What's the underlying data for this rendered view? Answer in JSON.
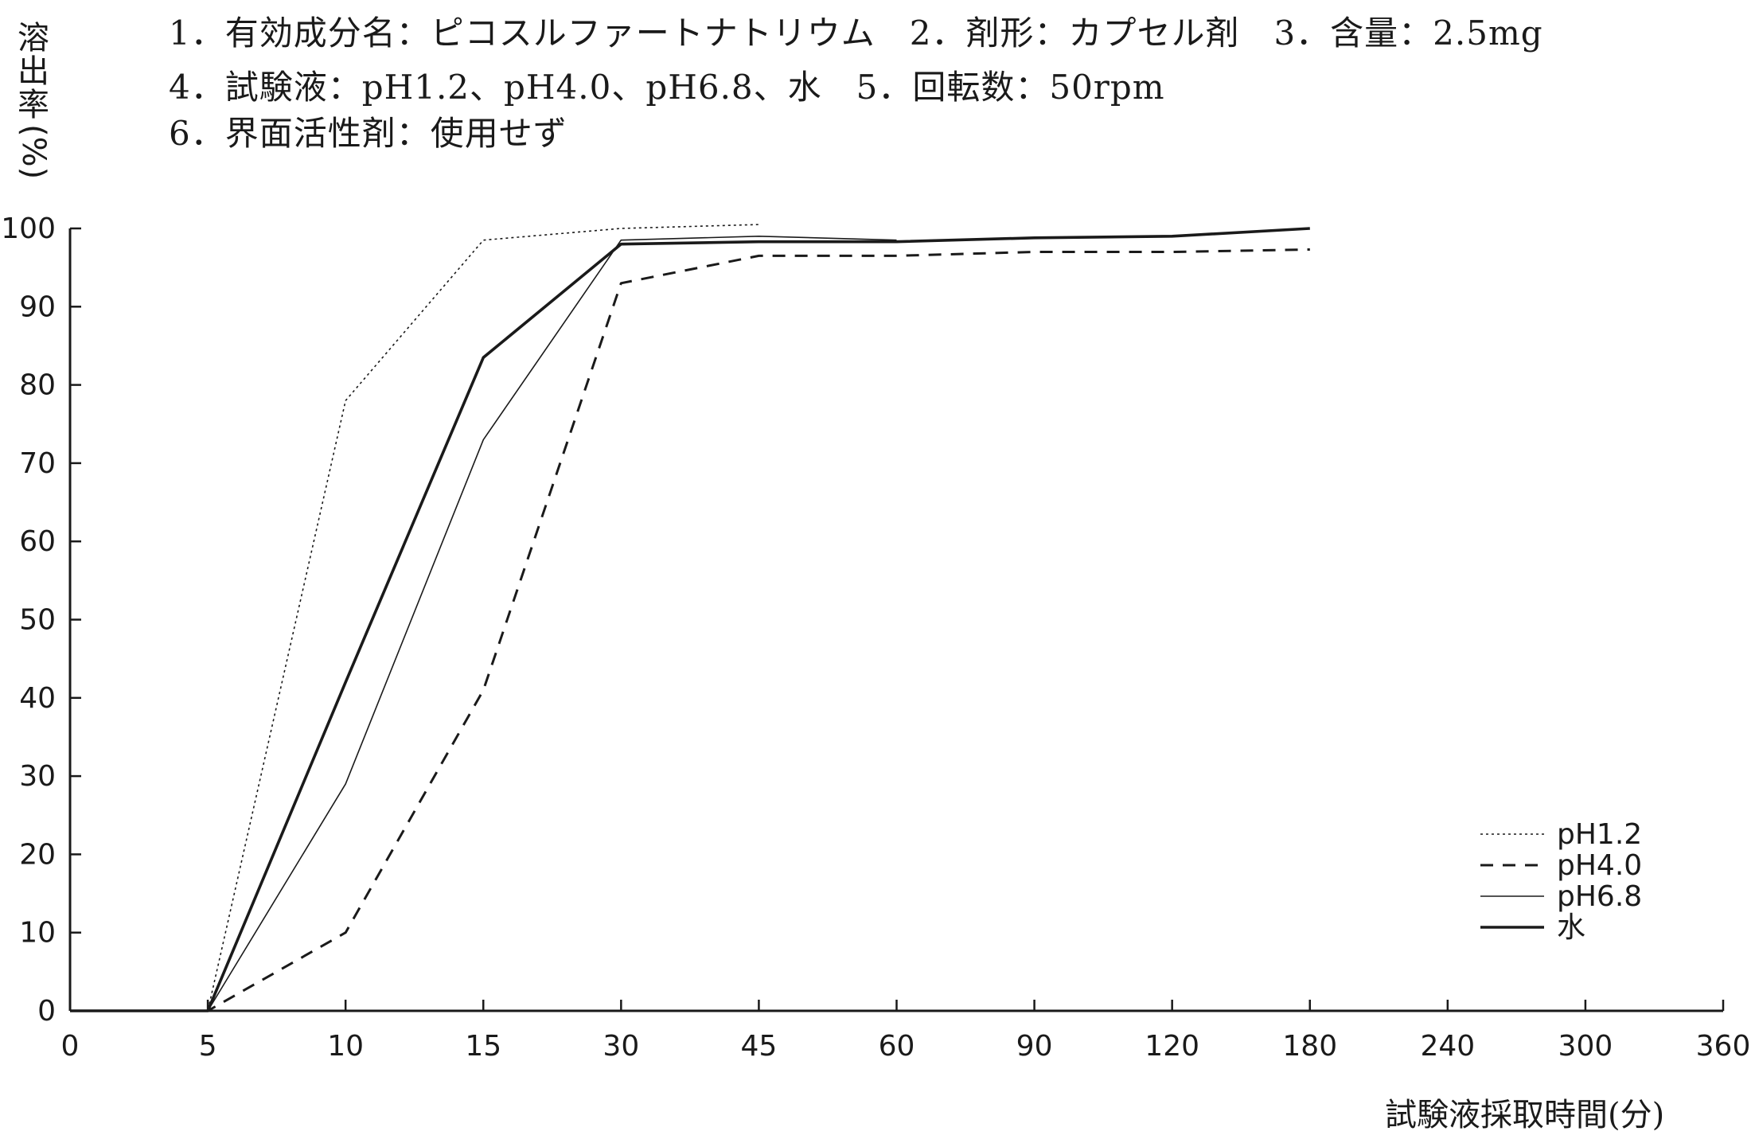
{
  "header": {
    "line1": "1．有効成分名：ピコスルファートナトリウム　2．剤形：カプセル剤　3．含量：2.5mg",
    "line2": "4．試験液：pH1.2、pH4.0、pH6.8、水　5．回転数：50rpm",
    "line3": "6．界面活性剤：使用せず"
  },
  "chart_data": {
    "type": "line",
    "title": "",
    "xlabel": "試験液採取時間(分)",
    "ylabel": "溶出率(%)",
    "ylabel_chars": [
      "溶",
      "出",
      "率",
      "(%)"
    ],
    "categories": [
      "0",
      "5",
      "10",
      "15",
      "30",
      "45",
      "60",
      "90",
      "120",
      "180",
      "240",
      "300",
      "360"
    ],
    "yticks": [
      "0",
      "10",
      "20",
      "30",
      "40",
      "50",
      "60",
      "70",
      "80",
      "90",
      "100"
    ],
    "ylim": [
      0,
      100
    ],
    "grid": false,
    "legend_position": "lower-right",
    "series": [
      {
        "name": "pH1.2",
        "style": "dotted",
        "x": [
          "0",
          "5",
          "10",
          "15",
          "30",
          "45"
        ],
        "values": [
          0,
          0,
          78,
          98.5,
          100,
          100.5
        ]
      },
      {
        "name": "pH4.0",
        "style": "dashed",
        "x": [
          "0",
          "5",
          "10",
          "15",
          "30",
          "45",
          "60",
          "90",
          "120",
          "180"
        ],
        "values": [
          0,
          0,
          10,
          41,
          93,
          96.5,
          96.5,
          97,
          97,
          97.3
        ]
      },
      {
        "name": "pH6.8",
        "style": "thin",
        "x": [
          "0",
          "5",
          "10",
          "15",
          "30",
          "45",
          "60"
        ],
        "values": [
          0,
          0,
          29,
          73,
          98.5,
          99,
          98.5
        ]
      },
      {
        "name": "水",
        "style": "bold",
        "x": [
          "0",
          "5",
          "10",
          "15",
          "30",
          "45",
          "60",
          "90",
          "120",
          "180"
        ],
        "values": [
          0,
          0,
          42,
          83.5,
          98,
          98.3,
          98.3,
          98.8,
          99,
          100
        ]
      }
    ]
  }
}
